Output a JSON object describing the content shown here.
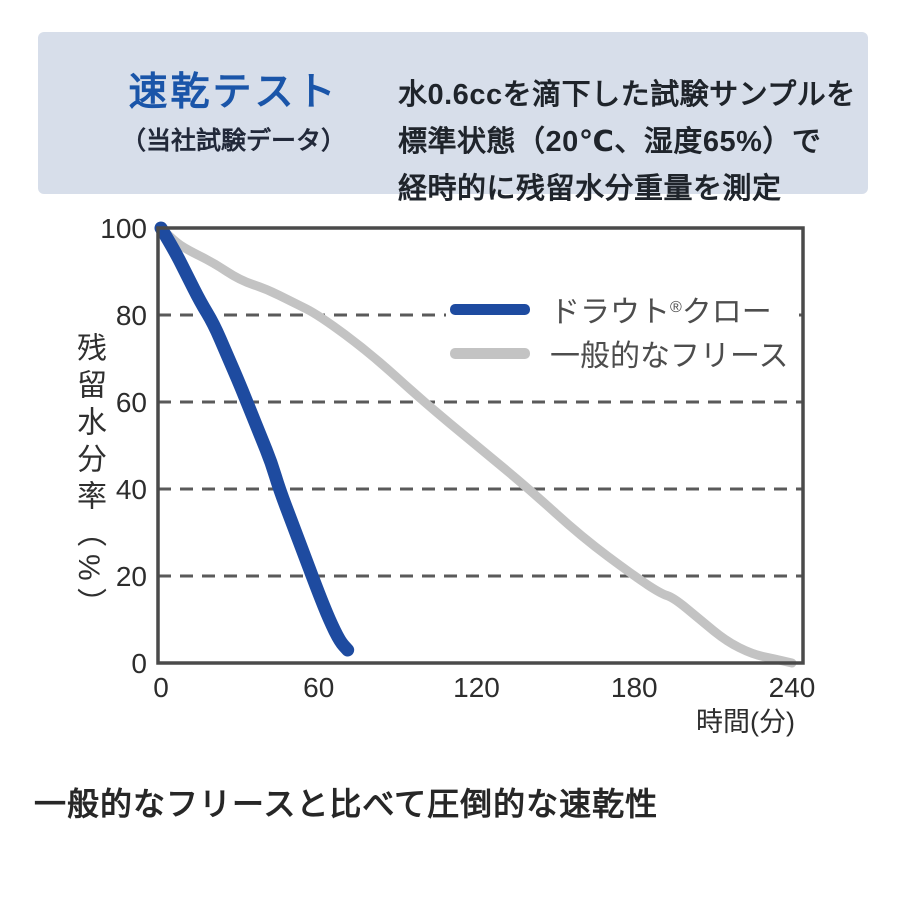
{
  "header": {
    "title": "速乾テスト",
    "subtitle": "（当社試験データ）",
    "description_line1": "水0.6ccを滴下した試験サンプルを",
    "description_line2": "標準状態（20℃、湿度65%）で",
    "description_line3": "経時的に残留水分重量を測定"
  },
  "chart_data": {
    "type": "line",
    "title": "",
    "xlabel": "時間(分)",
    "ylabel": "残留水分率（%）",
    "xlim": [
      0,
      240
    ],
    "ylim": [
      0,
      100
    ],
    "x_ticks": [
      0,
      60,
      120,
      180,
      240
    ],
    "y_ticks": [
      0,
      20,
      40,
      60,
      80,
      100
    ],
    "grid": "horizontal-dashed",
    "legend_position": "upper-right-inside",
    "series": [
      {
        "name": "ドラウト®クロー",
        "color": "#1e4ba0",
        "width": 13,
        "points": [
          [
            0,
            100
          ],
          [
            5,
            95
          ],
          [
            10,
            89
          ],
          [
            15,
            83
          ],
          [
            20,
            78
          ],
          [
            25,
            71
          ],
          [
            30,
            64
          ],
          [
            34,
            58
          ],
          [
            38,
            52
          ],
          [
            42,
            46
          ],
          [
            45,
            40
          ],
          [
            50,
            32
          ],
          [
            55,
            24
          ],
          [
            60,
            16
          ],
          [
            64,
            10
          ],
          [
            68,
            5
          ],
          [
            71,
            3
          ]
        ]
      },
      {
        "name": "一般的なフリース",
        "color": "#c3c3c3",
        "width": 9,
        "points": [
          [
            0,
            100
          ],
          [
            5,
            97
          ],
          [
            10,
            95
          ],
          [
            20,
            92
          ],
          [
            30,
            88
          ],
          [
            40,
            86
          ],
          [
            50,
            83
          ],
          [
            60,
            80
          ],
          [
            80,
            71
          ],
          [
            100,
            60
          ],
          [
            120,
            50
          ],
          [
            140,
            40
          ],
          [
            160,
            29
          ],
          [
            180,
            20
          ],
          [
            190,
            16
          ],
          [
            195,
            15
          ],
          [
            205,
            10
          ],
          [
            215,
            5
          ],
          [
            225,
            2
          ],
          [
            233,
            1
          ],
          [
            240,
            0
          ]
        ]
      }
    ]
  },
  "legend": {
    "entries": [
      {
        "pre": "ドラウト",
        "reg": "®",
        "post": "クロー"
      },
      {
        "pre": "一般的なフリース",
        "reg": "",
        "post": ""
      }
    ]
  },
  "footer": {
    "caption": "一般的なフリースと比べて圧倒的な速乾性"
  },
  "colors": {
    "header_bg": "#d7deea",
    "title_blue": "#1a55a9",
    "line_blue": "#1e4ba0",
    "line_gray": "#c3c3c3",
    "axis": "#4a4a4a",
    "grid": "#5a5a5a",
    "text_dark": "#1f242b",
    "legend_text": "#4d4d4d"
  }
}
